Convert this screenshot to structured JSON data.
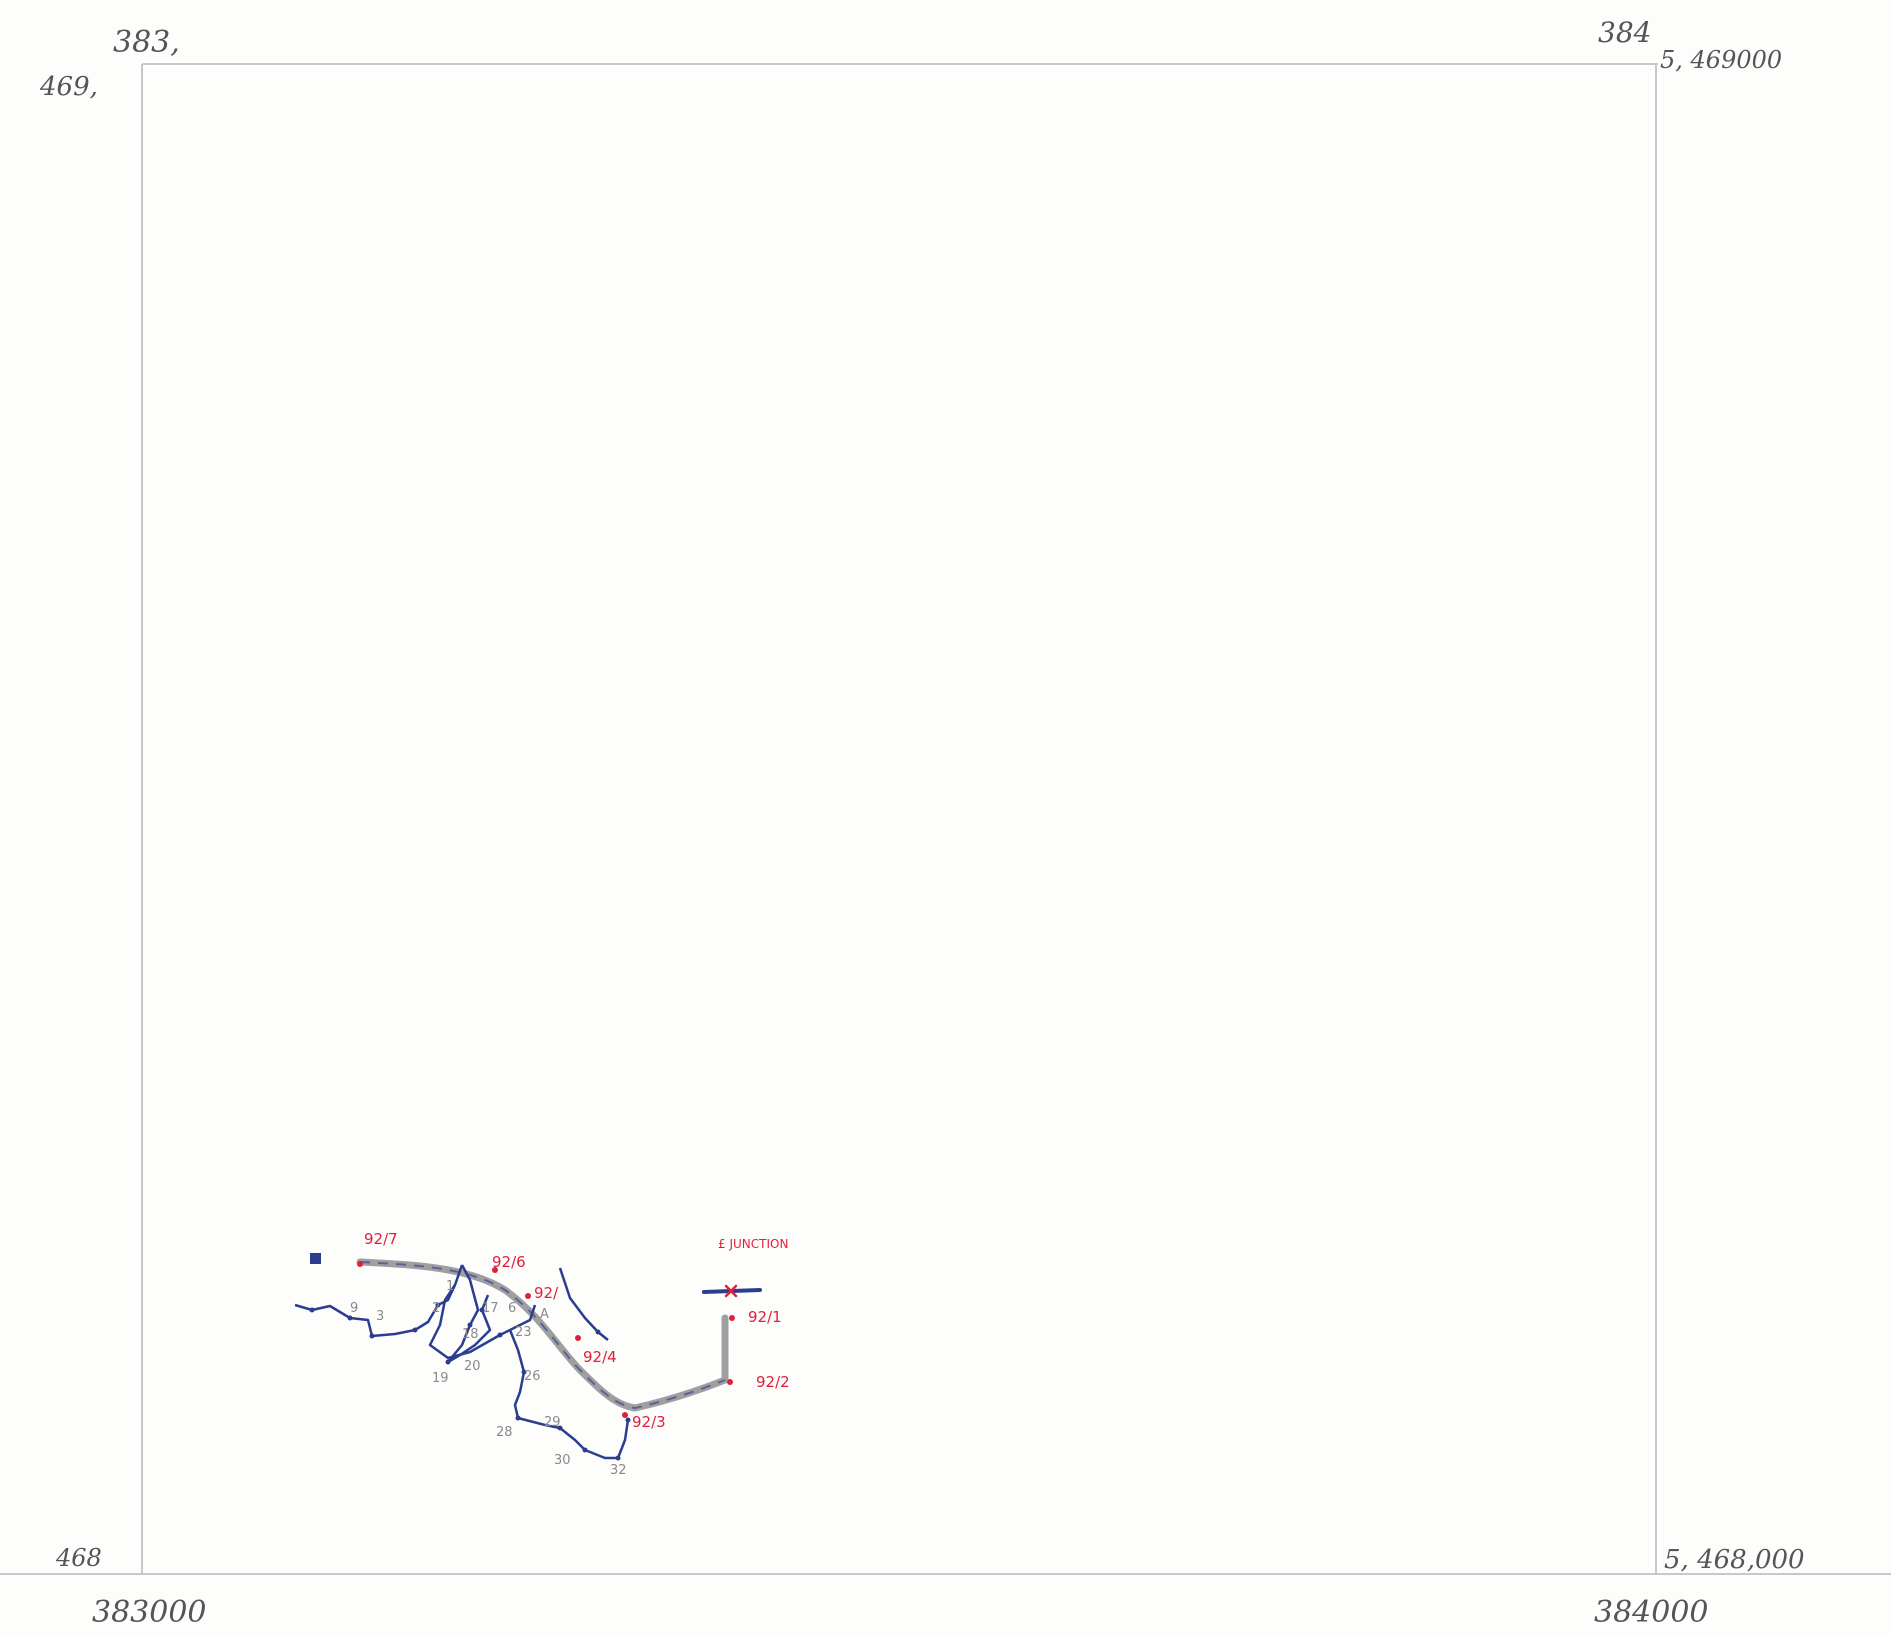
{
  "grid_labels": {
    "top_left_easting": "383,",
    "top_left_northing": "469,",
    "top_right_easting": "384",
    "top_right_northing": "5, 469000",
    "bottom_left_northing": "468",
    "bottom_left_easting": "383000",
    "bottom_right_northing": "5, 468,000",
    "bottom_right_easting": "384000"
  },
  "site_labels": {
    "s7": "92/7",
    "s6": "92/6",
    "s5": "92/",
    "s4": "92/4",
    "s3": "92/3",
    "s2": "92/2",
    "s1": "92/1"
  },
  "junction_label": "£ JUNCTION",
  "point_labels": {
    "p1": "1",
    "p2": "2",
    "p3": "3",
    "p9": "9",
    "p17": "17",
    "p6": "6",
    "pA": "A",
    "p18": "18",
    "p23": "23",
    "p19": "19",
    "p20": "20",
    "p26": "26",
    "p28": "28",
    "p29": "29",
    "p30": "30",
    "p32": "32"
  },
  "colors": {
    "grid_line": "#c8c8c8",
    "traverse": "#2a3d8f",
    "highway": "#8e8e8e",
    "site_label": "#e0203a",
    "point_label": "#8a8a8a"
  }
}
